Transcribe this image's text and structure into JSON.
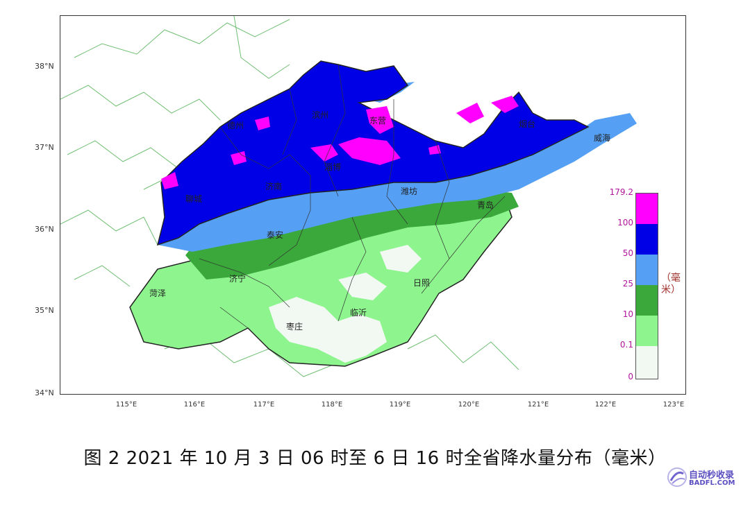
{
  "caption": "图 2 2021 年 10 月 3 日 06 时至 6 日 16 时全省降水量分布（毫米）",
  "map": {
    "lat_labels": [
      "38°N",
      "37°N",
      "36°N",
      "35°N",
      "34°N"
    ],
    "lon_labels": [
      "115°E",
      "116°E",
      "117°E",
      "118°E",
      "119°E",
      "120°E",
      "121°E",
      "122°E",
      "123°E"
    ],
    "cities": [
      "德州",
      "滨州",
      "东营",
      "烟台",
      "威海",
      "淄博",
      "济南",
      "聊城",
      "潍坊",
      "青岛",
      "泰安",
      "济宁",
      "菏泽",
      "日照",
      "临沂",
      "枣庄"
    ]
  },
  "legend": {
    "ticks": [
      "179.2",
      "100",
      "50",
      "25",
      "10",
      "0.1",
      "0"
    ],
    "unit": "（毫米）",
    "colors": [
      "#ff00ff",
      "#0000e6",
      "#55a0f5",
      "#3aa83a",
      "#8ef58e",
      "#f2f8f2"
    ]
  },
  "watermark": {
    "line1": "自动秒收录",
    "line2": "BADFL.COM"
  }
}
